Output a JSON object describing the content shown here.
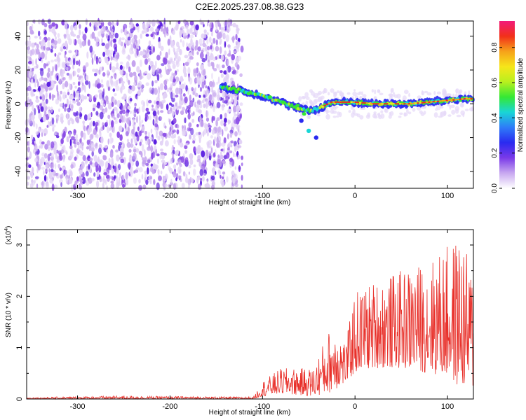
{
  "title": "C2E2.2025.237.08.38.G23",
  "chart_data": [
    {
      "type": "heatmap",
      "xlabel": "Height of straight line (km)",
      "ylabel": "Frequency (Hz)",
      "xlim": [
        -355,
        128
      ],
      "ylim": [
        -50,
        49
      ],
      "xticks": [
        -300,
        -200,
        -100,
        0,
        100
      ],
      "yticks": [
        -40,
        -20,
        0,
        20,
        40
      ],
      "noise_region_x": [
        -355,
        -122
      ],
      "ridge_points": [
        {
          "x": -145,
          "y": 10
        },
        {
          "x": -125,
          "y": 8
        },
        {
          "x": -110,
          "y": 6
        },
        {
          "x": -95,
          "y": 4
        },
        {
          "x": -80,
          "y": 1
        },
        {
          "x": -65,
          "y": -2
        },
        {
          "x": -50,
          "y": -4
        },
        {
          "x": -40,
          "y": -3
        },
        {
          "x": -25,
          "y": 1
        },
        {
          "x": -10,
          "y": 1
        },
        {
          "x": 0,
          "y": 1
        },
        {
          "x": 20,
          "y": 0
        },
        {
          "x": 40,
          "y": 0
        },
        {
          "x": 60,
          "y": 0
        },
        {
          "x": 80,
          "y": 1
        },
        {
          "x": 100,
          "y": 2
        },
        {
          "x": 120,
          "y": 3
        }
      ],
      "colorbar": {
        "label": "Normalized spectral amplitude",
        "range": [
          0,
          0.95
        ],
        "ticks": [
          "0.0",
          "0.2",
          "0.4",
          "0.6",
          "0.8"
        ],
        "colors": [
          "#ffffff",
          "#c8a8f0",
          "#7a3ae8",
          "#2a2af0",
          "#2e7cf8",
          "#19d6d6",
          "#34e834",
          "#b8f01e",
          "#f6e61a",
          "#f6a21a",
          "#f2301a",
          "#f21a7a"
        ]
      }
    },
    {
      "type": "line",
      "xlabel": "Height of straight line (km)",
      "ylabel": "SNR (10 * v/v)",
      "scale_label": "(x10",
      "scale_exp": "4",
      "scale_close": ")",
      "xlim": [
        -355,
        128
      ],
      "ylim": [
        0,
        3.3
      ],
      "xticks": [
        -300,
        -200,
        -100,
        0,
        100
      ],
      "yticks": [
        0,
        1,
        2,
        3
      ],
      "color": "#e8302a",
      "envelope": [
        {
          "x": -355,
          "lo": 0.0,
          "hi": 0.03
        },
        {
          "x": -260,
          "lo": 0.0,
          "hi": 0.06
        },
        {
          "x": -110,
          "lo": 0.0,
          "hi": 0.04
        },
        {
          "x": -100,
          "lo": 0.05,
          "hi": 0.35
        },
        {
          "x": -80,
          "lo": 0.1,
          "hi": 0.6
        },
        {
          "x": -45,
          "lo": 0.05,
          "hi": 0.6
        },
        {
          "x": -30,
          "lo": 0.1,
          "hi": 1.3
        },
        {
          "x": -20,
          "lo": 0.2,
          "hi": 1.5
        },
        {
          "x": -10,
          "lo": 0.3,
          "hi": 1.1
        },
        {
          "x": 0,
          "lo": 0.5,
          "hi": 2.1
        },
        {
          "x": 20,
          "lo": 0.6,
          "hi": 2.3
        },
        {
          "x": 50,
          "lo": 0.6,
          "hi": 2.5
        },
        {
          "x": 80,
          "lo": 0.5,
          "hi": 2.7
        },
        {
          "x": 100,
          "lo": 0.4,
          "hi": 3.0
        },
        {
          "x": 115,
          "lo": 0.2,
          "hi": 3.2
        },
        {
          "x": 128,
          "lo": 0.2,
          "hi": 2.4
        }
      ]
    }
  ]
}
